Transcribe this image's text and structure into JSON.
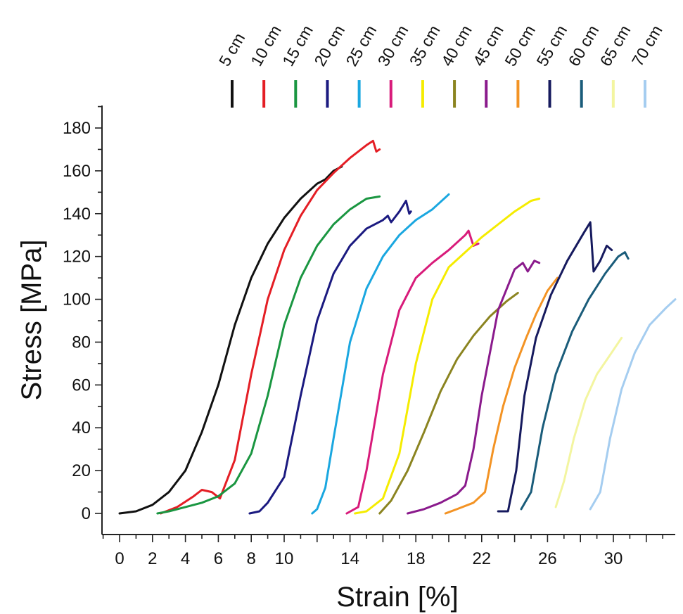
{
  "chart_data": {
    "type": "line",
    "title": "",
    "xlabel": "Strain [%]",
    "ylabel": "Stress [MPa]",
    "xlim": [
      -0.6,
      34
    ],
    "ylim": [
      -10,
      190
    ],
    "x_ticks": [
      0,
      2,
      4,
      6,
      8,
      10,
      14,
      18,
      22,
      26,
      30
    ],
    "y_ticks": [
      0,
      20,
      40,
      60,
      80,
      100,
      120,
      140,
      160,
      180
    ],
    "legend_position": "top",
    "grid": false,
    "series": [
      {
        "name": "5 cm",
        "color": "#111111",
        "x": [
          0,
          1,
          2,
          3,
          4,
          5,
          6,
          7,
          8,
          9,
          10,
          11,
          12,
          12.5,
          13,
          13.5
        ],
        "y": [
          0,
          1,
          4,
          10,
          20,
          38,
          60,
          88,
          110,
          126,
          138,
          147,
          154,
          156,
          160,
          162
        ]
      },
      {
        "name": "10 cm",
        "color": "#e41e25",
        "x": [
          2.5,
          3.5,
          4.5,
          5,
          5.6,
          6.1,
          7,
          8,
          9,
          10,
          11,
          12,
          13,
          14,
          15,
          15.4,
          15.6,
          15.8
        ],
        "y": [
          0,
          3,
          8,
          11,
          10,
          7,
          25,
          65,
          100,
          123,
          139,
          151,
          159,
          166,
          172,
          174,
          169,
          170
        ]
      },
      {
        "name": "15 cm",
        "color": "#1a9641",
        "x": [
          2.3,
          3,
          4,
          5,
          6,
          7,
          8,
          9,
          10,
          11,
          12,
          13,
          14,
          15,
          15.8
        ],
        "y": [
          0,
          1,
          3,
          5,
          8,
          14,
          28,
          55,
          88,
          110,
          125,
          135,
          142,
          147,
          148
        ]
      },
      {
        "name": "20 cm",
        "color": "#1b1a80",
        "x": [
          7.9,
          8.5,
          9,
          10,
          11,
          12,
          13,
          14,
          15,
          16,
          16.3,
          16.5,
          17,
          17.4,
          17.6,
          17.7
        ],
        "y": [
          0,
          1,
          5,
          17,
          55,
          90,
          112,
          125,
          133,
          137,
          139,
          136,
          141,
          146,
          140,
          141
        ]
      },
      {
        "name": "25 cm",
        "color": "#1aa7e0",
        "x": [
          11.7,
          12,
          12.5,
          13,
          14,
          15,
          16,
          17,
          18,
          19,
          20
        ],
        "y": [
          0,
          2,
          12,
          35,
          80,
          105,
          120,
          130,
          137,
          142,
          149
        ]
      },
      {
        "name": "30 cm",
        "color": "#d81b7a",
        "x": [
          13.8,
          14.5,
          15,
          16,
          17,
          18,
          19,
          20,
          21,
          21.2,
          21.5,
          21.8
        ],
        "y": [
          0,
          3,
          20,
          65,
          95,
          110,
          117,
          123,
          130,
          132,
          125,
          126
        ]
      },
      {
        "name": "35 cm",
        "color": "#f5ec00",
        "x": [
          14.3,
          15,
          16,
          17,
          18,
          19,
          20,
          21,
          22,
          23,
          24,
          25,
          25.5
        ],
        "y": [
          0,
          1,
          7,
          28,
          70,
          100,
          115,
          122,
          129,
          135,
          141,
          146,
          147
        ]
      },
      {
        "name": "40 cm",
        "color": "#8b8420",
        "x": [
          15.8,
          16.5,
          17.5,
          18.5,
          19.5,
          20.5,
          21.5,
          22.5,
          23.5,
          24.2
        ],
        "y": [
          0,
          6,
          20,
          38,
          57,
          72,
          83,
          92,
          99,
          103
        ]
      },
      {
        "name": "45 cm",
        "color": "#8a1a8c",
        "x": [
          17.5,
          18.5,
          19.5,
          20.5,
          21,
          21.5,
          22,
          23,
          24,
          24.5,
          24.8,
          25.2,
          25.5
        ],
        "y": [
          0,
          2,
          5,
          9,
          13,
          30,
          55,
          95,
          114,
          117,
          113,
          118,
          117
        ]
      },
      {
        "name": "50 cm",
        "color": "#f39324",
        "x": [
          19.8,
          20.5,
          21.5,
          22.2,
          22.7,
          23.3,
          24,
          24.7,
          25.3,
          26,
          26.6
        ],
        "y": [
          0,
          2,
          5,
          10,
          30,
          50,
          68,
          82,
          93,
          104,
          110
        ]
      },
      {
        "name": "55 cm",
        "color": "#161a5e",
        "x": [
          23,
          23.6,
          24.1,
          24.6,
          25.3,
          26.2,
          27.2,
          28.2,
          28.6,
          28.8,
          29.2,
          29.6,
          29.9
        ],
        "y": [
          1,
          1,
          20,
          55,
          82,
          102,
          118,
          131,
          136,
          113,
          118,
          125,
          123
        ]
      },
      {
        "name": "60 cm",
        "color": "#1a5c7a",
        "x": [
          24.4,
          25,
          25.7,
          26.5,
          27.5,
          28.5,
          29.5,
          30.3,
          30.7,
          30.9
        ],
        "y": [
          2,
          10,
          40,
          65,
          85,
          100,
          112,
          120,
          122,
          119
        ]
      },
      {
        "name": "65 cm",
        "color": "#f3f5a0",
        "x": [
          26.5,
          27,
          27.6,
          28.3,
          29,
          29.8,
          30.5
        ],
        "y": [
          3,
          15,
          35,
          53,
          65,
          74,
          82
        ]
      },
      {
        "name": "70 cm",
        "color": "#a5cdf0",
        "x": [
          28.6,
          29.2,
          29.8,
          30.5,
          31.3,
          32.2,
          33.2,
          34
        ],
        "y": [
          2,
          10,
          35,
          58,
          75,
          88,
          96,
          100
        ]
      }
    ]
  }
}
